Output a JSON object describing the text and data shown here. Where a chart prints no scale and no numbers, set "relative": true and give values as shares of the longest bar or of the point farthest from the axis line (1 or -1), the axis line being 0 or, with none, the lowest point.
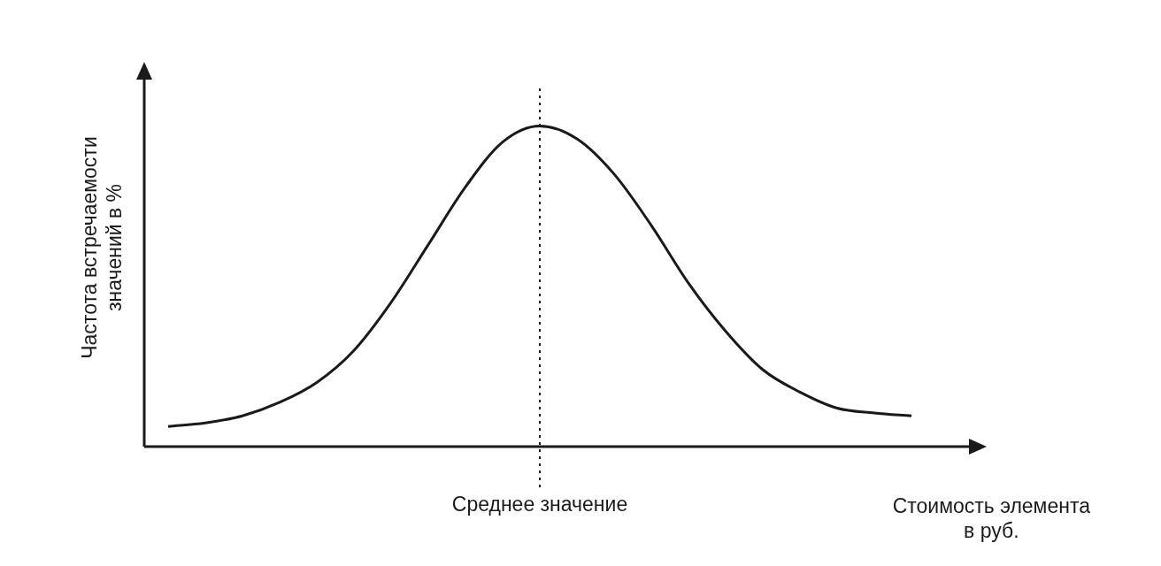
{
  "chart_data": {
    "type": "line",
    "relative": true,
    "xlabel": "Стоимость элемента\nв руб.",
    "ylabel": "Частота встречаемости\nзначений в %",
    "categories": [
      null,
      null,
      null,
      null,
      null,
      null,
      null,
      null,
      null,
      null,
      null,
      null,
      null,
      null,
      null,
      null,
      null,
      null,
      null,
      null,
      null
    ],
    "series": [
      {
        "color": "#1a1a1a",
        "values": [
          0.063,
          0.074,
          0.096,
          0.138,
          0.2,
          0.3,
          0.45,
          0.63,
          0.81,
          0.95,
          1,
          0.96,
          0.85,
          0.69,
          0.51,
          0.36,
          0.24,
          0.17,
          0.12,
          0.105,
          0.096
        ]
      }
    ],
    "annotations": [
      "Среднее значение"
    ],
    "legend": false,
    "marker": "none",
    "line_style": "solid"
  }
}
